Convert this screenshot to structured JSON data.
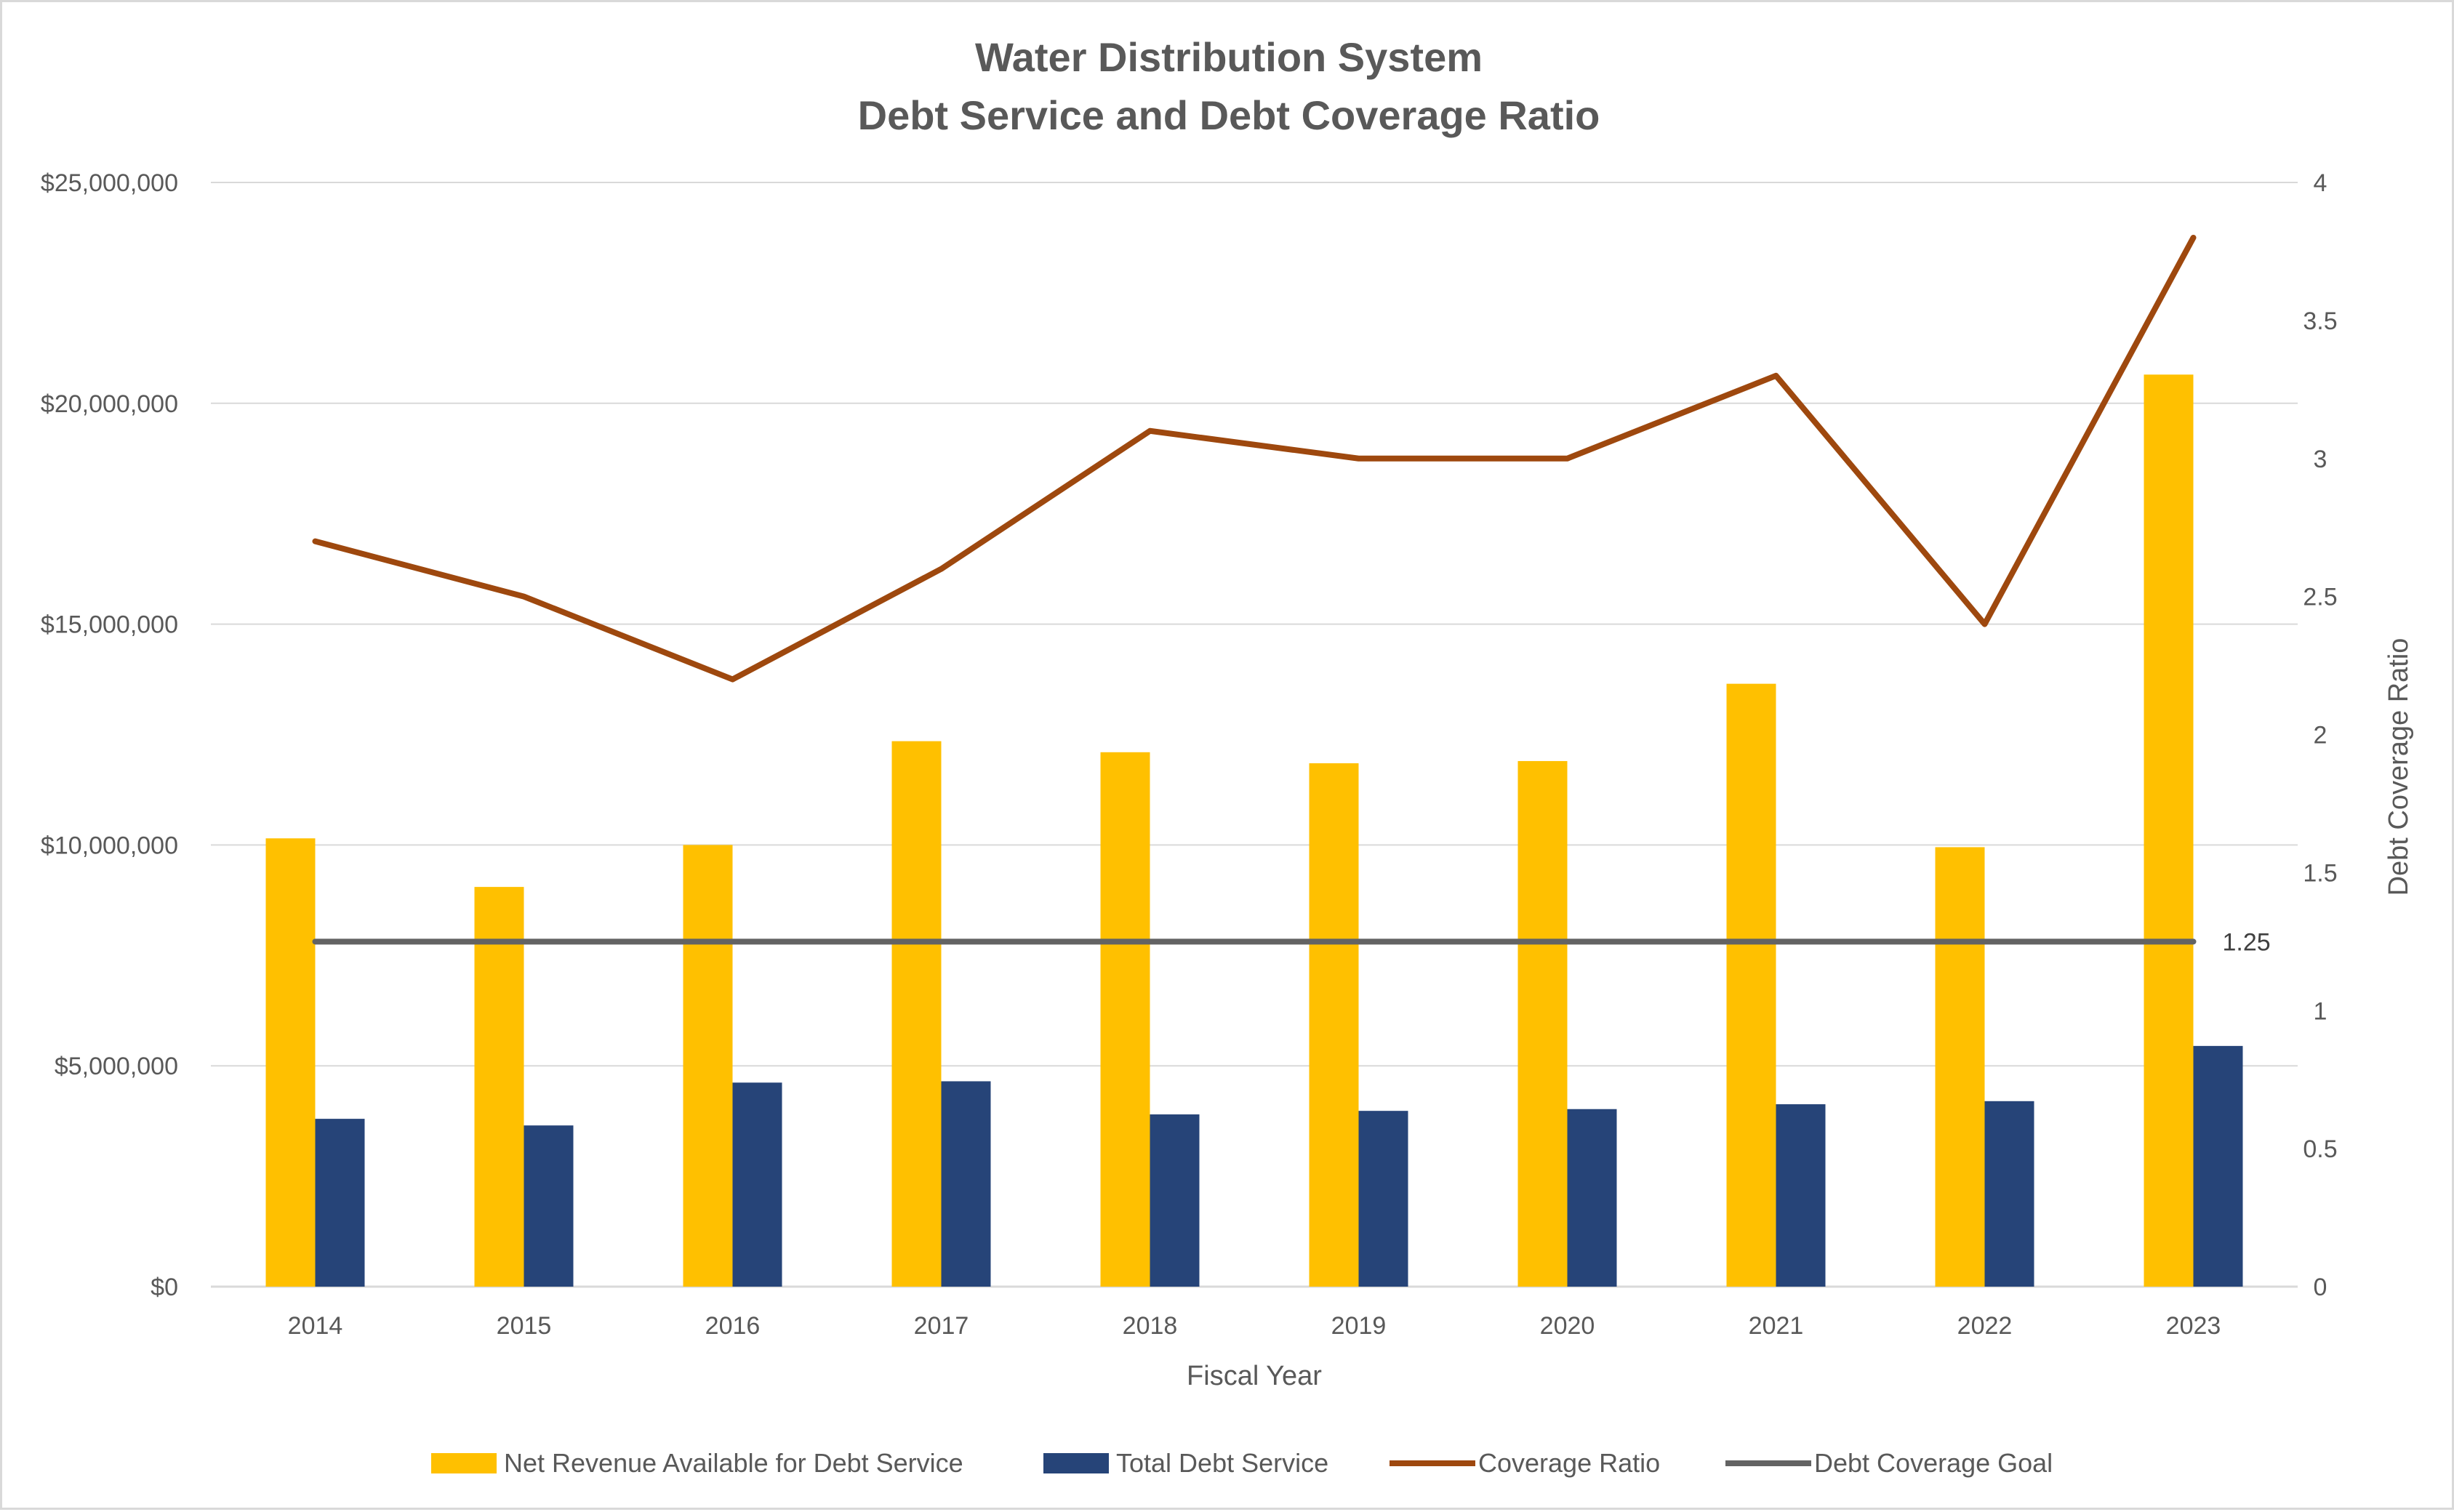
{
  "chart_data": {
    "type": "bar",
    "title_line1": "Water Distribution System",
    "title_line2": "Debt Service and Debt Coverage Ratio",
    "xlabel": "Fiscal Year",
    "ylabel": "",
    "y2label": "Debt Coverage Ratio",
    "categories": [
      "2014",
      "2015",
      "2016",
      "2017",
      "2018",
      "2019",
      "2020",
      "2021",
      "2022",
      "2023"
    ],
    "ylim": [
      0,
      25000000
    ],
    "y2lim": [
      0,
      4
    ],
    "yticks": [
      "$0",
      "$5,000,000",
      "$10,000,000",
      "$15,000,000",
      "$20,000,000",
      "$25,000,000"
    ],
    "y2ticks": [
      "0",
      "0.5",
      "1",
      "1.5",
      "2",
      "2.5",
      "3",
      "3.5",
      "4"
    ],
    "grid": true,
    "legend_position": "bottom",
    "series": [
      {
        "name": "Net Revenue Available for Debt Service",
        "kind": "bar",
        "axis": "left",
        "color": "#FFC000",
        "values": [
          10150000,
          9050000,
          10000000,
          12350000,
          12100000,
          11850000,
          11900000,
          13650000,
          9950000,
          20650000
        ]
      },
      {
        "name": "Total Debt Service",
        "kind": "bar",
        "axis": "left",
        "color": "#264478",
        "values": [
          3800000,
          3650000,
          4620000,
          4650000,
          3900000,
          3980000,
          4020000,
          4130000,
          4200000,
          5450000
        ]
      },
      {
        "name": "Coverage Ratio",
        "kind": "line",
        "axis": "right",
        "color": "#9E480E",
        "values": [
          2.7,
          2.5,
          2.2,
          2.6,
          3.1,
          3.0,
          3.0,
          3.3,
          2.4,
          3.8
        ]
      },
      {
        "name": "Debt Coverage Goal",
        "kind": "line",
        "axis": "right",
        "color": "#636363",
        "values": [
          1.25,
          1.25,
          1.25,
          1.25,
          1.25,
          1.25,
          1.25,
          1.25,
          1.25,
          1.25
        ],
        "end_label": "1.25"
      }
    ]
  }
}
